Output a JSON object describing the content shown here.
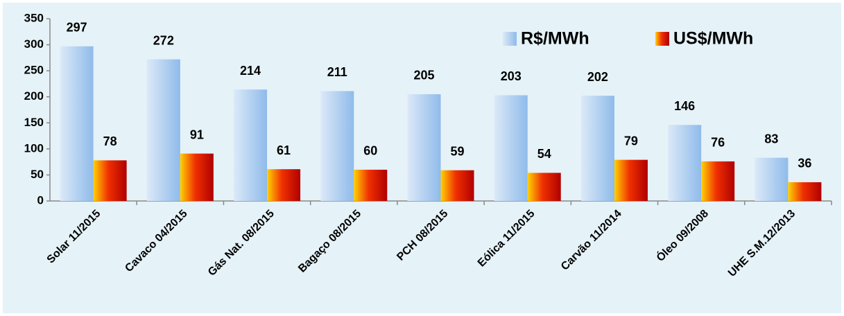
{
  "chart_data": {
    "type": "bar",
    "categories": [
      "Solar 11/2015",
      "Cavaco 04/2015",
      "Gás Nat. 08/2015",
      "Bagaço 08/2015",
      "PCH 08/2015",
      "Eólica 11/2015",
      "Carvão 11/2014",
      "Óleo 09/2008",
      "UHE S.M.12/2013"
    ],
    "series": [
      {
        "name": "R$/MWh",
        "color": "#8fbbea",
        "values": [
          297,
          272,
          214,
          211,
          205,
          203,
          202,
          146,
          83
        ]
      },
      {
        "name": "US$/MWh",
        "color": "#b00000",
        "values": [
          78,
          91,
          61,
          60,
          59,
          54,
          79,
          76,
          36
        ]
      }
    ],
    "ylim": [
      0,
      350
    ],
    "yticks": [
      0,
      50,
      100,
      150,
      200,
      250,
      300,
      350
    ],
    "grid": false,
    "legend": "top-right"
  }
}
